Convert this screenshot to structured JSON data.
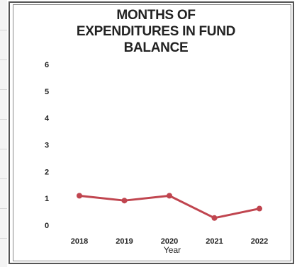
{
  "chart_data": {
    "type": "line",
    "title": "MONTHS OF EXPENDITURES IN FUND BALANCE",
    "title_lines": [
      "MONTHS OF",
      "EXPENDITURES IN FUND",
      "BALANCE"
    ],
    "xlabel": "Year",
    "ylabel": "",
    "categories": [
      "2018",
      "2019",
      "2020",
      "2021",
      "2022"
    ],
    "series": [
      {
        "values": [
          1.1,
          0.92,
          1.1,
          0.27,
          0.62
        ]
      }
    ],
    "ylim": [
      0,
      6
    ],
    "yticks": [
      0,
      1,
      2,
      3,
      4,
      5,
      6
    ],
    "line_color": "#c0454f",
    "grid": false,
    "legend": "none"
  }
}
